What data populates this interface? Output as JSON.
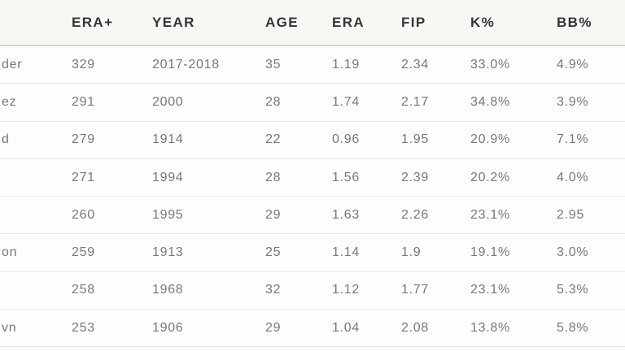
{
  "chart_data": {
    "type": "table",
    "note": "Pitching leaderboard cropped at left edge; player-name column header not visible and name text truncated mid-word",
    "columns": [
      "",
      "ERA+",
      "YEAR",
      "AGE",
      "ERA",
      "FIP",
      "K%",
      "BB%"
    ],
    "rows": [
      [
        "der",
        "329",
        "2017-2018",
        "35",
        "1.19",
        "2.34",
        "33.0%",
        "4.9%"
      ],
      [
        "ez",
        "291",
        "2000",
        "28",
        "1.74",
        "2.17",
        "34.8%",
        "3.9%"
      ],
      [
        "d",
        "279",
        "1914",
        "22",
        "0.96",
        "1.95",
        "20.9%",
        "7.1%"
      ],
      [
        "",
        "271",
        "1994",
        "28",
        "1.56",
        "2.39",
        "20.2%",
        "4.0%"
      ],
      [
        "",
        "260",
        "1995",
        "29",
        "1.63",
        "2.26",
        "23.1%",
        "2.95"
      ],
      [
        "on",
        "259",
        "1913",
        "25",
        "1.14",
        "1.9",
        "19.1%",
        "3.0%"
      ],
      [
        "",
        "258",
        "1968",
        "32",
        "1.12",
        "1.77",
        "23.1%",
        "5.3%"
      ],
      [
        "vn",
        "253",
        "1906",
        "29",
        "1.04",
        "2.08",
        "13.8%",
        "5.8%"
      ]
    ],
    "layout": {
      "header_row": true,
      "dividers": "horizontal-only",
      "column_alignment": "left",
      "legend": "none"
    }
  },
  "colors": {
    "header_text": "#32353b",
    "cell_text": "#77787a",
    "row_divider": "#e9e8e4",
    "header_divider": "#d3d2ce",
    "header_background": "#f8f7f3",
    "row_background": "#fdfdfb",
    "page_background": "#fcfbf8"
  }
}
